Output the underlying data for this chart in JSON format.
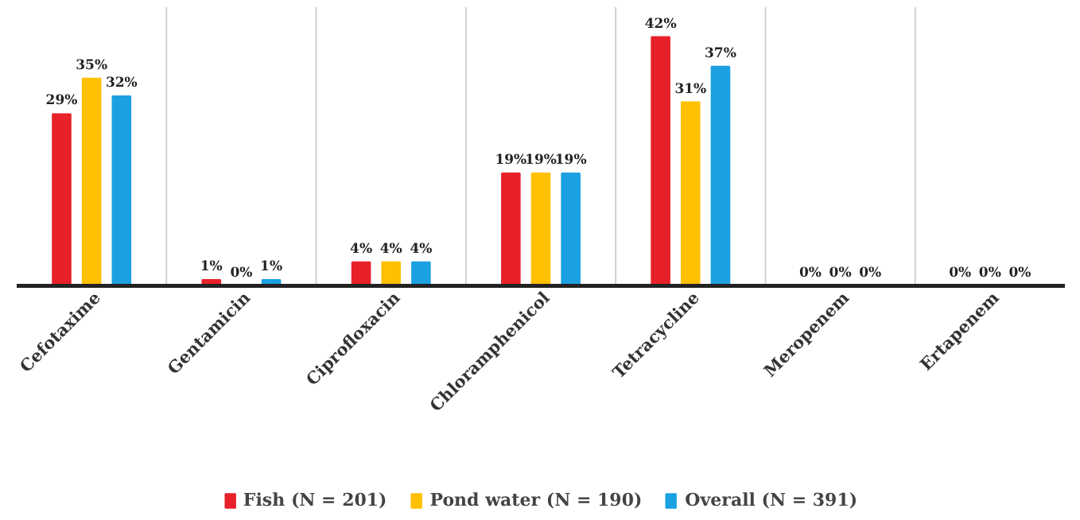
{
  "chart_data": {
    "type": "bar",
    "categories": [
      "Cefotaxime",
      "Gentamicin",
      "Ciprofloxacin",
      "Chloramphenicol",
      "Tetracycline",
      "Meropenem",
      "Ertapenem"
    ],
    "series": [
      {
        "name": "Fish (N = 201)",
        "color": "#e8202a",
        "values": [
          29,
          1,
          4,
          19,
          42,
          0,
          0
        ],
        "value_labels": [
          "29%",
          "1%",
          "4%",
          "19%",
          "42%",
          "0%",
          "0%"
        ]
      },
      {
        "name": "Pond water (N = 190)",
        "color": "#ffc000",
        "values": [
          35,
          0,
          4,
          19,
          31,
          0,
          0
        ],
        "value_labels": [
          "35%",
          "0%",
          "4%",
          "19%",
          "31%",
          "0%",
          "0%"
        ]
      },
      {
        "name": "Overall (N = 391)",
        "color": "#1ba1e2",
        "values": [
          32,
          1,
          4,
          19,
          37,
          0,
          0
        ],
        "value_labels": [
          "32%",
          "1%",
          "4%",
          "19%",
          "37%",
          "0%",
          "0%"
        ]
      }
    ],
    "grid": "x",
    "legend": "bottom"
  }
}
